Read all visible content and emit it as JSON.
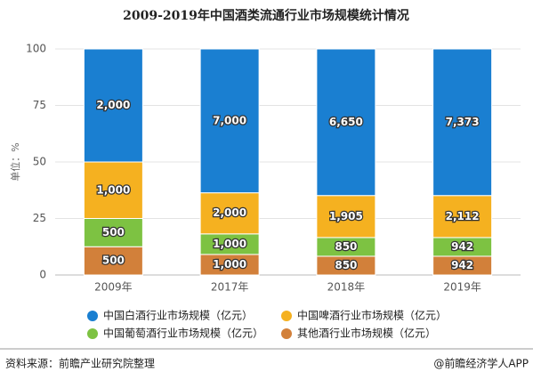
{
  "chart_data": {
    "type": "bar",
    "stacked": "percent",
    "title": "2009-2019年中国酒类流通行业市场规模统计情况",
    "y_label": "单位：%",
    "categories": [
      "2009年",
      "2017年",
      "2018年",
      "2019年"
    ],
    "series": [
      {
        "name": "中国白酒行业市场规模（亿元）",
        "color": "#1a7fd1",
        "values": [
          2000,
          7000,
          6650,
          7373
        ],
        "value_labels": [
          "2,000",
          "7,000",
          "6,650",
          "7,373"
        ]
      },
      {
        "name": "中国啤酒行业市场规模（亿元）",
        "color": "#f5b120",
        "values": [
          1000,
          2000,
          1905,
          2112
        ],
        "value_labels": [
          "1,000",
          "2,000",
          "1,905",
          "2,112"
        ]
      },
      {
        "name": "中国葡萄酒行业市场规模（亿元）",
        "color": "#7dc242",
        "values": [
          500,
          1000,
          850,
          942
        ],
        "value_labels": [
          "500",
          "1,000",
          "850",
          "942"
        ]
      },
      {
        "name": "其他酒行业市场规模（亿元）",
        "color": "#d2803a",
        "values": [
          500,
          1000,
          850,
          942
        ],
        "value_labels": [
          "500",
          "1,000",
          "850",
          "942"
        ]
      }
    ],
    "ylim": [
      0,
      100
    ],
    "yticks": [
      0,
      25,
      50,
      75,
      100
    ],
    "grid": true,
    "source": "资料来源：前瞻产业研究院整理",
    "credit": "@前瞻经济学人APP"
  }
}
